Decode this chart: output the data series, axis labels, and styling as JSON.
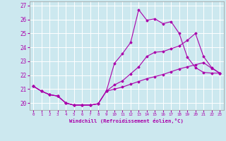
{
  "xlabel": "Windchill (Refroidissement éolien,°C)",
  "xlim": [
    -0.5,
    23.5
  ],
  "ylim": [
    19.5,
    27.3
  ],
  "yticks": [
    20,
    21,
    22,
    23,
    24,
    25,
    26,
    27
  ],
  "xticks": [
    0,
    1,
    2,
    3,
    4,
    5,
    6,
    7,
    8,
    9,
    10,
    11,
    12,
    13,
    14,
    15,
    16,
    17,
    18,
    19,
    20,
    21,
    22,
    23
  ],
  "bg_color": "#cce8ef",
  "grid_color": "#ffffff",
  "line_color": "#aa00aa",
  "lines": [
    {
      "x": [
        0,
        1,
        2,
        3,
        4,
        5,
        6,
        7,
        8,
        9,
        10,
        11,
        12,
        13,
        14,
        15,
        16,
        17,
        18,
        19,
        20,
        21,
        22,
        23
      ],
      "y": [
        21.2,
        20.85,
        20.6,
        20.5,
        20.0,
        19.85,
        19.85,
        19.85,
        19.95,
        20.85,
        22.85,
        23.55,
        24.35,
        26.7,
        25.95,
        26.05,
        25.7,
        25.85,
        25.0,
        23.3,
        22.55,
        22.2,
        22.15,
        22.15
      ]
    },
    {
      "x": [
        0,
        1,
        2,
        3,
        4,
        5,
        6,
        7,
        8,
        9,
        10,
        11,
        12,
        13,
        14,
        15,
        16,
        17,
        18,
        19,
        20,
        21,
        22,
        23
      ],
      "y": [
        21.2,
        20.85,
        20.6,
        20.5,
        20.0,
        19.85,
        19.85,
        19.85,
        19.95,
        20.85,
        21.3,
        21.6,
        22.1,
        22.6,
        23.35,
        23.65,
        23.7,
        23.9,
        24.1,
        24.5,
        25.0,
        23.35,
        22.55,
        22.15
      ]
    },
    {
      "x": [
        0,
        1,
        2,
        3,
        4,
        5,
        6,
        7,
        8,
        9,
        10,
        11,
        12,
        13,
        14,
        15,
        16,
        17,
        18,
        19,
        20,
        21,
        22,
        23
      ],
      "y": [
        21.2,
        20.85,
        20.6,
        20.5,
        20.0,
        19.85,
        19.85,
        19.85,
        19.95,
        20.85,
        21.0,
        21.15,
        21.35,
        21.55,
        21.75,
        21.9,
        22.05,
        22.25,
        22.45,
        22.6,
        22.75,
        22.9,
        22.5,
        22.15
      ]
    }
  ]
}
